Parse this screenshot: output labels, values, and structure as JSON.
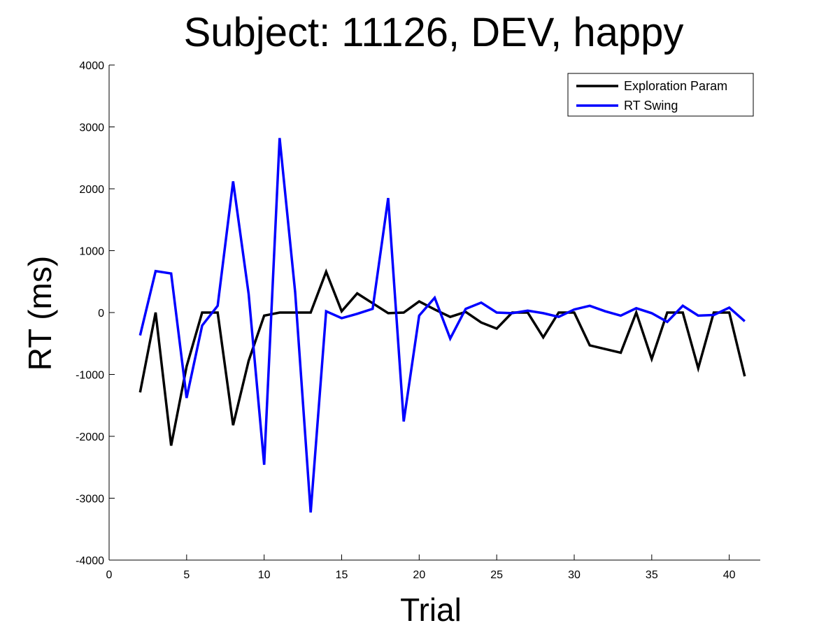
{
  "chart_data": {
    "type": "line",
    "title": "Subject: 11126, DEV, happy",
    "xlabel": "Trial",
    "ylabel": "RT (ms)",
    "xlim": [
      0,
      42
    ],
    "ylim": [
      -4000,
      4000
    ],
    "xticks": [
      0,
      5,
      10,
      15,
      20,
      25,
      30,
      35,
      40
    ],
    "yticks": [
      -4000,
      -3000,
      -2000,
      -1000,
      0,
      1000,
      2000,
      3000,
      4000
    ],
    "grid": false,
    "legend_position": "top-right",
    "x": [
      2,
      3,
      4,
      5,
      6,
      7,
      8,
      9,
      10,
      11,
      12,
      13,
      14,
      15,
      16,
      17,
      18,
      19,
      20,
      21,
      22,
      23,
      24,
      25,
      26,
      27,
      28,
      29,
      30,
      31,
      32,
      33,
      34,
      35,
      36,
      37,
      38,
      39,
      40,
      41
    ],
    "series": [
      {
        "name": "Exploration Param",
        "color": "#000000",
        "values": [
          -1290,
          0,
          -2150,
          -870,
          0,
          0,
          -1820,
          -780,
          -50,
          0,
          0,
          0,
          660,
          20,
          310,
          150,
          -10,
          0,
          180,
          50,
          -70,
          10,
          -160,
          -260,
          0,
          0,
          -400,
          0,
          0,
          -530,
          -590,
          -650,
          0,
          -750,
          0,
          0,
          -900,
          0,
          0,
          -1030
        ]
      },
      {
        "name": "RT Swing",
        "color": "#0000ff",
        "values": [
          -370,
          670,
          630,
          -1380,
          -210,
          110,
          2120,
          300,
          -2460,
          2820,
          330,
          -3230,
          20,
          -90,
          -20,
          60,
          1850,
          -1760,
          -50,
          240,
          -420,
          60,
          160,
          0,
          -10,
          30,
          -10,
          -70,
          50,
          110,
          20,
          -50,
          70,
          -10,
          -150,
          110,
          -50,
          -40,
          80,
          -140
        ]
      }
    ]
  }
}
